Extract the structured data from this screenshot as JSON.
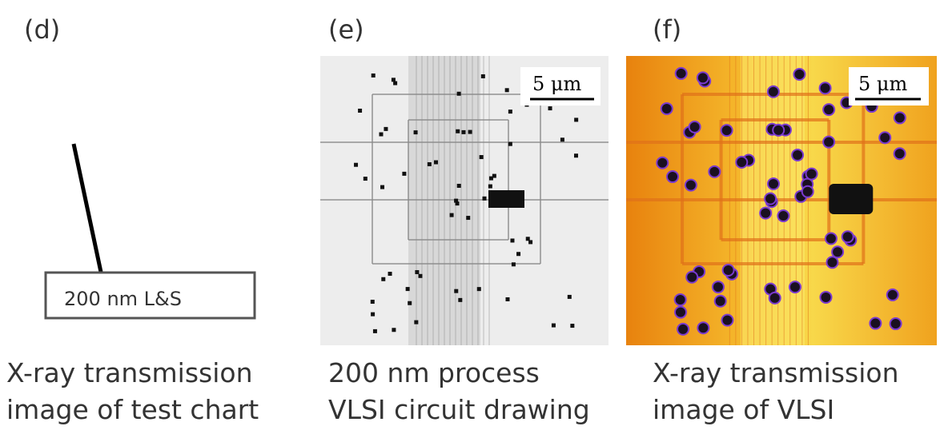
{
  "panels": [
    {
      "label": "(d)",
      "box_label": "200 nm L&S",
      "caption": [
        "X-ray transmission",
        "image of test chart"
      ]
    },
    {
      "label": "(e)",
      "scale_bar": "5 μm",
      "caption": [
        "200 nm process",
        "VLSI circuit drawing"
      ]
    },
    {
      "label": "(f)",
      "scale_bar": "5 μm",
      "caption": [
        "X-ray transmission",
        "image of VLSI"
      ]
    }
  ]
}
